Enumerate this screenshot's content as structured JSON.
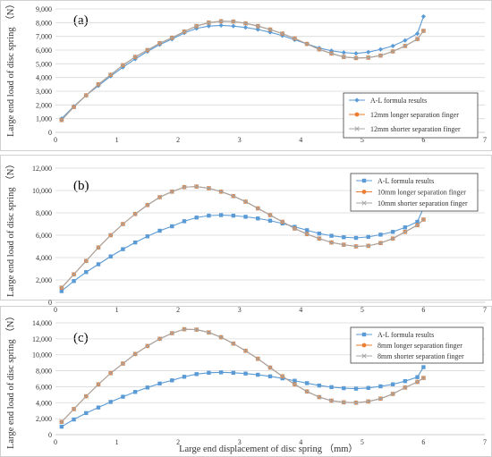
{
  "chart_data": [
    {
      "type": "line",
      "panel_label": "(a)",
      "ylabel": "Large end load of disc spring （N）",
      "xlabel": "",
      "xlim": [
        0,
        7
      ],
      "ylim": [
        0,
        9000
      ],
      "xticks": [
        "0",
        "1",
        "2",
        "3",
        "4",
        "5",
        "6",
        "7"
      ],
      "yticks": [
        "0",
        "1,000",
        "2,000",
        "3,000",
        "4,000",
        "5,000",
        "6,000",
        "7,000",
        "8,000",
        "9,000"
      ],
      "legend_position": "bottom-right",
      "series": [
        {
          "name": "A-L formula results",
          "color": "#5b9bd5",
          "marker": "diamond",
          "x": [
            0.1,
            0.3,
            0.5,
            0.7,
            0.9,
            1.1,
            1.3,
            1.5,
            1.7,
            1.9,
            2.1,
            2.3,
            2.5,
            2.7,
            2.9,
            3.1,
            3.3,
            3.5,
            3.7,
            3.9,
            4.1,
            4.3,
            4.5,
            4.7,
            4.9,
            5.1,
            5.3,
            5.5,
            5.7,
            5.9,
            6.0
          ],
          "y": [
            1000,
            1900,
            2700,
            3400,
            4100,
            4750,
            5350,
            5900,
            6400,
            6800,
            7250,
            7580,
            7750,
            7800,
            7750,
            7650,
            7500,
            7300,
            7050,
            6750,
            6450,
            6150,
            5950,
            5820,
            5760,
            5850,
            6050,
            6300,
            6700,
            7200,
            8450
          ]
        },
        {
          "name": "12mm longer separation finger",
          "color": "#ed7d31",
          "marker": "circle",
          "x": [
            0.1,
            0.3,
            0.5,
            0.7,
            0.9,
            1.1,
            1.3,
            1.5,
            1.7,
            1.9,
            2.1,
            2.3,
            2.5,
            2.7,
            2.9,
            3.1,
            3.3,
            3.5,
            3.7,
            3.9,
            4.1,
            4.3,
            4.5,
            4.7,
            4.9,
            5.1,
            5.3,
            5.5,
            5.7,
            5.9,
            6.0
          ],
          "y": [
            900,
            1850,
            2700,
            3500,
            4200,
            4900,
            5500,
            6000,
            6500,
            6900,
            7350,
            7750,
            8000,
            8100,
            8080,
            7950,
            7750,
            7500,
            7200,
            6850,
            6450,
            6050,
            5750,
            5500,
            5420,
            5450,
            5600,
            5900,
            6300,
            6800,
            7400
          ]
        },
        {
          "name": "12mm shorter separation finger",
          "color": "#a5a5a5",
          "marker": "x",
          "x": [
            0.1,
            0.3,
            0.5,
            0.7,
            0.9,
            1.1,
            1.3,
            1.5,
            1.7,
            1.9,
            2.1,
            2.3,
            2.5,
            2.7,
            2.9,
            3.1,
            3.3,
            3.5,
            3.7,
            3.9,
            4.1,
            4.3,
            4.5,
            4.7,
            4.9,
            5.1,
            5.3,
            5.5,
            5.7,
            5.9,
            6.0
          ],
          "y": [
            900,
            1850,
            2700,
            3500,
            4200,
            4900,
            5500,
            6000,
            6500,
            6900,
            7350,
            7750,
            8000,
            8100,
            8080,
            7950,
            7750,
            7500,
            7200,
            6850,
            6450,
            6050,
            5750,
            5500,
            5420,
            5450,
            5600,
            5900,
            6300,
            6800,
            7400
          ]
        }
      ]
    },
    {
      "type": "line",
      "panel_label": "(b)",
      "ylabel": "Large end load of disc spring （N）",
      "xlabel": "",
      "xlim": [
        0,
        7
      ],
      "ylim": [
        0,
        12000
      ],
      "xticks": [
        "0",
        "1",
        "2",
        "3",
        "4",
        "5",
        "6",
        "7"
      ],
      "yticks": [
        "0",
        "2,000",
        "4,000",
        "6,000",
        "8,000",
        "10,000",
        "12,000"
      ],
      "legend_position": "top-right",
      "series": [
        {
          "name": "A-L formula results",
          "color": "#5b9bd5",
          "marker": "square",
          "x": [
            0.1,
            0.3,
            0.5,
            0.7,
            0.9,
            1.1,
            1.3,
            1.5,
            1.7,
            1.9,
            2.1,
            2.3,
            2.5,
            2.7,
            2.9,
            3.1,
            3.3,
            3.5,
            3.7,
            3.9,
            4.1,
            4.3,
            4.5,
            4.7,
            4.9,
            5.1,
            5.3,
            5.5,
            5.7,
            5.9,
            6.0
          ],
          "y": [
            1000,
            1900,
            2700,
            3400,
            4100,
            4750,
            5350,
            5900,
            6400,
            6800,
            7250,
            7580,
            7750,
            7800,
            7750,
            7650,
            7500,
            7300,
            7050,
            6750,
            6450,
            6150,
            5950,
            5820,
            5760,
            5850,
            6050,
            6300,
            6700,
            7200,
            8450
          ]
        },
        {
          "name": "10mm longer separation finger",
          "color": "#ed7d31",
          "marker": "circle",
          "x": [
            0.1,
            0.3,
            0.5,
            0.7,
            0.9,
            1.1,
            1.3,
            1.5,
            1.7,
            1.9,
            2.1,
            2.3,
            2.5,
            2.7,
            2.9,
            3.1,
            3.3,
            3.5,
            3.7,
            3.9,
            4.1,
            4.3,
            4.5,
            4.7,
            4.9,
            5.1,
            5.3,
            5.5,
            5.7,
            5.9,
            6.0
          ],
          "y": [
            1300,
            2500,
            3700,
            4900,
            6000,
            7000,
            7900,
            8700,
            9400,
            9900,
            10300,
            10350,
            10200,
            9900,
            9500,
            9000,
            8400,
            7800,
            7200,
            6600,
            6100,
            5700,
            5350,
            5150,
            5000,
            5050,
            5300,
            5700,
            6300,
            6900,
            7400
          ]
        },
        {
          "name": "10mm shorter separation finger",
          "color": "#a5a5a5",
          "marker": "x",
          "x": [
            0.1,
            0.3,
            0.5,
            0.7,
            0.9,
            1.1,
            1.3,
            1.5,
            1.7,
            1.9,
            2.1,
            2.3,
            2.5,
            2.7,
            2.9,
            3.1,
            3.3,
            3.5,
            3.7,
            3.9,
            4.1,
            4.3,
            4.5,
            4.7,
            4.9,
            5.1,
            5.3,
            5.5,
            5.7,
            5.9,
            6.0
          ],
          "y": [
            1300,
            2500,
            3700,
            4900,
            6000,
            7000,
            7900,
            8700,
            9400,
            9900,
            10300,
            10350,
            10200,
            9900,
            9500,
            9000,
            8400,
            7800,
            7200,
            6600,
            6100,
            5700,
            5350,
            5150,
            5000,
            5050,
            5300,
            5700,
            6300,
            6900,
            7400
          ]
        }
      ]
    },
    {
      "type": "line",
      "panel_label": "(c)",
      "ylabel": "Large end load of disc spring （N）",
      "xlabel": "Large end displacement of disc spring （mm）",
      "xlim": [
        0,
        7
      ],
      "ylim": [
        0,
        14000
      ],
      "xticks": [
        "0",
        "1",
        "2",
        "3",
        "4",
        "5",
        "6",
        "7"
      ],
      "yticks": [
        "0",
        "2,000",
        "4,000",
        "6,000",
        "8,000",
        "10,000",
        "12,000",
        "14,000"
      ],
      "legend_position": "top-right",
      "series": [
        {
          "name": "A-L formula results",
          "color": "#5b9bd5",
          "marker": "square",
          "x": [
            0.1,
            0.3,
            0.5,
            0.7,
            0.9,
            1.1,
            1.3,
            1.5,
            1.7,
            1.9,
            2.1,
            2.3,
            2.5,
            2.7,
            2.9,
            3.1,
            3.3,
            3.5,
            3.7,
            3.9,
            4.1,
            4.3,
            4.5,
            4.7,
            4.9,
            5.1,
            5.3,
            5.5,
            5.7,
            5.9,
            6.0
          ],
          "y": [
            1000,
            1900,
            2700,
            3400,
            4100,
            4750,
            5350,
            5900,
            6400,
            6800,
            7250,
            7580,
            7750,
            7800,
            7750,
            7650,
            7500,
            7300,
            7050,
            6750,
            6450,
            6150,
            5950,
            5820,
            5760,
            5850,
            6050,
            6300,
            6700,
            7200,
            8450
          ]
        },
        {
          "name": "8mm longer separation finger",
          "color": "#ed7d31",
          "marker": "circle",
          "x": [
            0.1,
            0.3,
            0.5,
            0.7,
            0.9,
            1.1,
            1.3,
            1.5,
            1.7,
            1.9,
            2.1,
            2.3,
            2.5,
            2.7,
            2.9,
            3.1,
            3.3,
            3.5,
            3.7,
            3.9,
            4.1,
            4.3,
            4.5,
            4.7,
            4.9,
            5.1,
            5.3,
            5.5,
            5.7,
            5.9,
            6.0
          ],
          "y": [
            1600,
            3200,
            4800,
            6300,
            7700,
            8900,
            10100,
            11100,
            12000,
            12700,
            13200,
            13150,
            12800,
            12200,
            11400,
            10500,
            9500,
            8400,
            7300,
            6300,
            5400,
            4700,
            4250,
            4050,
            4000,
            4150,
            4500,
            5100,
            5900,
            6600,
            7100
          ]
        },
        {
          "name": "8mm shorter separation finger",
          "color": "#a5a5a5",
          "marker": "x",
          "x": [
            0.1,
            0.3,
            0.5,
            0.7,
            0.9,
            1.1,
            1.3,
            1.5,
            1.7,
            1.9,
            2.1,
            2.3,
            2.5,
            2.7,
            2.9,
            3.1,
            3.3,
            3.5,
            3.7,
            3.9,
            4.1,
            4.3,
            4.5,
            4.7,
            4.9,
            5.1,
            5.3,
            5.5,
            5.7,
            5.9,
            6.0
          ],
          "y": [
            1600,
            3200,
            4800,
            6300,
            7700,
            8900,
            10100,
            11100,
            12000,
            12700,
            13200,
            13150,
            12800,
            12200,
            11400,
            10500,
            9500,
            8400,
            7300,
            6300,
            5400,
            4700,
            4250,
            4050,
            4000,
            4150,
            4500,
            5100,
            5900,
            6600,
            7100
          ]
        }
      ]
    }
  ]
}
